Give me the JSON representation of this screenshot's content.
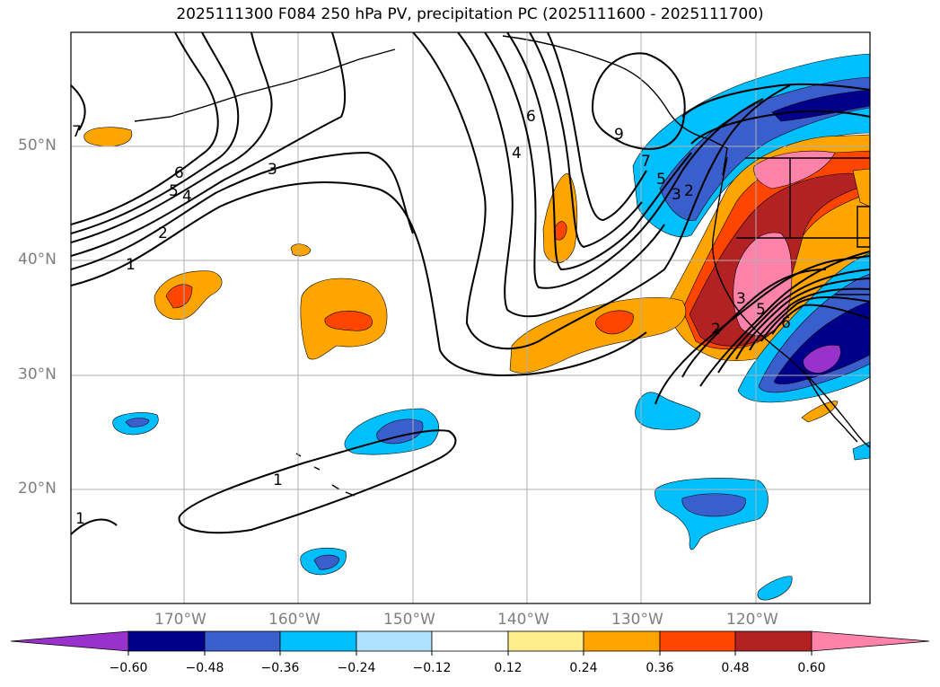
{
  "title": "2025111300 F084 250 hPa PV, precipitation PC (2025111600 - 2025111700)",
  "map": {
    "lat_labels": [
      "50°N",
      "40°N",
      "30°N",
      "20°N"
    ],
    "lon_labels": [
      "170°W",
      "160°W",
      "150°W",
      "140°W",
      "130°W",
      "120°W"
    ],
    "contour_labels": [
      "1",
      "2",
      "3",
      "4",
      "5",
      "6",
      "7",
      "6",
      "9",
      "1",
      "1",
      "2",
      "3",
      "4",
      "5",
      "6",
      "7",
      "1",
      "2",
      "3",
      "4",
      "5",
      "6",
      "7"
    ]
  },
  "colorbar": {
    "tick_labels": [
      "−0.60",
      "−0.48",
      "−0.36",
      "−0.24",
      "−0.12",
      "0.12",
      "0.24",
      "0.36",
      "0.48",
      "0.60"
    ],
    "colors": [
      "#9932cc",
      "#00008b",
      "#3a5fcd",
      "#00bfff",
      "#b0e2ff",
      "#ffffff",
      "#ffec8b",
      "#ffa500",
      "#ff4500",
      "#b22222",
      "#ff82ab",
      "#ff82ab"
    ]
  },
  "colors": {
    "ocean": "#ffffff",
    "contour": "#000000",
    "grid": "#b0b0b0",
    "label_grey": "#7f7f7f"
  }
}
